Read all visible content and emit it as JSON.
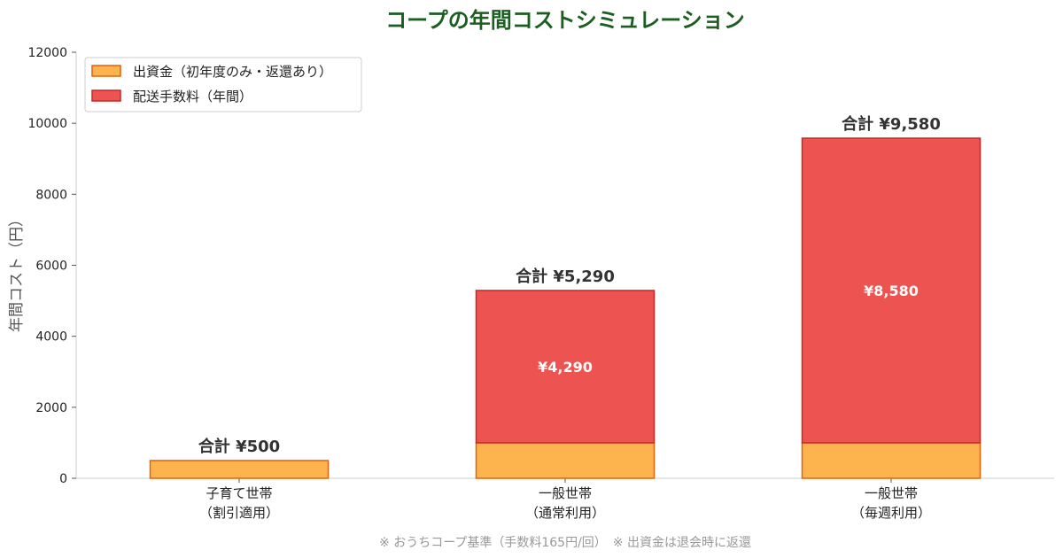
{
  "chart_data": {
    "type": "bar",
    "stacked": true,
    "title": "コープの年間コストシミュレーション",
    "ylabel": "年間コスト（円）",
    "xlabel": "",
    "ylim": [
      0,
      12000
    ],
    "yticks": [
      0,
      2000,
      4000,
      6000,
      8000,
      10000,
      12000
    ],
    "categories": [
      {
        "line1": "子育て世帯",
        "line2": "（割引適用）"
      },
      {
        "line1": "一般世帯",
        "line2": "（通常利用）"
      },
      {
        "line1": "一般世帯",
        "line2": "（毎週利用）"
      }
    ],
    "series": [
      {
        "name": "出資金（初年度のみ・返還あり）",
        "values": [
          500,
          1000,
          1000
        ],
        "color": "#FDB44E",
        "edge": "#E0620E"
      },
      {
        "name": "配送手数料（年間）",
        "values": [
          0,
          4290,
          8580
        ],
        "color": "#ED5350",
        "edge": "#C62828"
      }
    ],
    "segment_labels": [
      "",
      "¥4,290",
      "¥8,580"
    ],
    "total_labels": [
      "合計 ¥500",
      "合計 ¥5,290",
      "合計 ¥9,580"
    ],
    "legend_position": "top-left",
    "grid": false,
    "title_color": "#1B5E20",
    "footnote": "※ おうちコープ基準（手数料165円/回）　※ 出資金は退会時に返還"
  }
}
